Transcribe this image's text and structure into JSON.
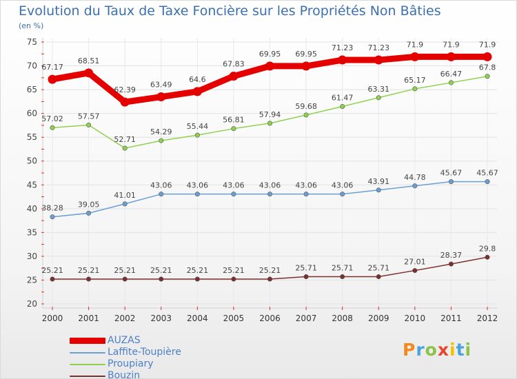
{
  "title": "Evolution du Taux de Taxe Foncière sur les Propriétés Non Bâties",
  "unit": "(en %)",
  "logo": "Proxiti",
  "chart_data": {
    "type": "line",
    "x": [
      "2000",
      "2001",
      "2002",
      "2003",
      "2004",
      "2005",
      "2006",
      "2007",
      "2008",
      "2009",
      "2010",
      "2011",
      "2012"
    ],
    "ylim": [
      20,
      75
    ],
    "yticks": [
      20,
      25,
      30,
      35,
      40,
      45,
      50,
      55,
      60,
      65,
      70,
      75
    ],
    "grid": true,
    "legend_position": "bottom-left",
    "series": [
      {
        "name": "AUZAS",
        "color": "#e50000",
        "values": [
          67.17,
          68.51,
          62.39,
          63.49,
          64.6,
          67.83,
          69.95,
          69.95,
          71.23,
          71.23,
          71.9,
          71.9,
          71.9
        ],
        "labels": [
          "67.17",
          "68.51",
          "62.39",
          "63.49",
          "64.6",
          "67.83",
          "69.95",
          "69.95",
          "71.23",
          "71.23",
          "71.9",
          "71.9",
          "71.9"
        ]
      },
      {
        "name": "Laffite-Toupière",
        "color": "#6a9fd4",
        "values": [
          38.28,
          39.05,
          41.01,
          43.06,
          43.06,
          43.06,
          43.06,
          43.06,
          43.06,
          43.91,
          44.78,
          45.67,
          45.67
        ],
        "labels": [
          "38.28",
          "39.05",
          "41.01",
          "43.06",
          "43.06",
          "43.06",
          "43.06",
          "43.06",
          "43.06",
          "43.91",
          "44.78",
          "45.67",
          "45.67"
        ]
      },
      {
        "name": "Proupiary",
        "color": "#8fd14f",
        "values": [
          57.02,
          57.57,
          52.71,
          54.29,
          55.44,
          56.81,
          57.94,
          59.68,
          61.47,
          63.31,
          65.17,
          66.47,
          67.8
        ],
        "labels": [
          "57.02",
          "57.57",
          "52.71",
          "54.29",
          "55.44",
          "56.81",
          "57.94",
          "59.68",
          "61.47",
          "63.31",
          "65.17",
          "66.47",
          "67.8"
        ]
      },
      {
        "name": "Bouzin",
        "color": "#7a2e2e",
        "values": [
          25.21,
          25.21,
          25.21,
          25.21,
          25.21,
          25.21,
          25.21,
          25.71,
          25.71,
          25.71,
          27.01,
          28.37,
          29.8
        ],
        "labels": [
          "25.21",
          "25.21",
          "25.21",
          "25.21",
          "25.21",
          "25.21",
          "25.21",
          "25.71",
          "25.71",
          "25.71",
          "27.01",
          "28.37",
          "29.8"
        ]
      }
    ]
  }
}
